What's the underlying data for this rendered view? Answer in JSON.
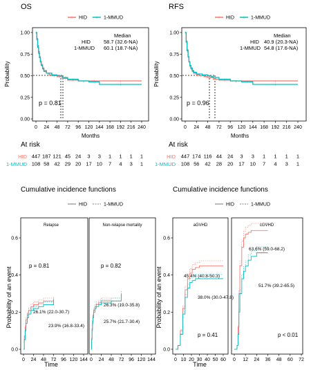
{
  "colors": {
    "hid": "#f8766d",
    "mmud": "#00bfc4"
  },
  "survival": [
    {
      "title": "OS",
      "legend": [
        "HID",
        "1-MMUD"
      ],
      "median_header": "Median",
      "median_rows": [
        {
          "group": "HID",
          "value": "58.7 (32.6-NA)"
        },
        {
          "group": "1-MMUD",
          "value": "60.1 (18.7-NA)"
        }
      ],
      "p_text": "p = 0.81",
      "ylabel": "Probability",
      "xlabel": "Months",
      "yticks": [
        "0.00",
        "0.25",
        "0.50",
        "0.75",
        "1.00"
      ],
      "xticks": [
        "0",
        "24",
        "48",
        "72",
        "96",
        "120",
        "144",
        "168",
        "192",
        "216",
        "240"
      ],
      "at_risk_title": "At risk",
      "at_risk": [
        {
          "group": "HID",
          "counts": [
            "447",
            "187",
            "121",
            "45",
            "24",
            "3",
            "3",
            "1",
            "1",
            "1",
            "1"
          ]
        },
        {
          "group": "1-MMUD",
          "counts": [
            "108",
            "58",
            "42",
            "29",
            "20",
            "17",
            "10",
            "7",
            "4",
            "3",
            "1"
          ]
        }
      ]
    },
    {
      "title": "RFS",
      "legend": [
        "HID",
        "1-MMUD"
      ],
      "median_header": "Median",
      "median_rows": [
        {
          "group": "HID",
          "value": "40.9 (20.3-NA)"
        },
        {
          "group": "1-MMUD",
          "value": "54.8 (17.6-NA)"
        }
      ],
      "p_text": "p = 0.96",
      "ylabel": "Probability",
      "xlabel": "Months",
      "yticks": [
        "0.00",
        "0.25",
        "0.50",
        "0.75",
        "1.00"
      ],
      "xticks": [
        "0",
        "24",
        "48",
        "72",
        "96",
        "120",
        "144",
        "168",
        "192",
        "216",
        "240"
      ],
      "at_risk_title": "At risk",
      "at_risk": [
        {
          "group": "HID",
          "counts": [
            "447",
            "174",
            "116",
            "44",
            "24",
            "3",
            "3",
            "1",
            "1",
            "1",
            "1"
          ]
        },
        {
          "group": "1-MMUD",
          "counts": [
            "108",
            "56",
            "42",
            "28",
            "20",
            "17",
            "10",
            "7",
            "4",
            "3",
            "1"
          ]
        }
      ]
    }
  ],
  "cif": {
    "left_title": "Cumulative incidence functions",
    "right_title": "Cumulative incidence functions",
    "legend": [
      "HID",
      "1-MMUD"
    ],
    "panels": [
      {
        "title": "Relapse",
        "p_text": "p = 0.81",
        "ann_hid": "26.1% (22.0-30.7)",
        "ann_mmud": "23.9% (16.8-33.4)",
        "xticks": [
          "0",
          "24",
          "48",
          "72",
          "96",
          "120",
          "144"
        ]
      },
      {
        "title": "Non-relapse mortality",
        "p_text": "p = 0.82",
        "ann_hid": "26.3% (19.0-35.8)",
        "ann_mmud": "25.7% (21.7-30.4)",
        "xticks": [
          "0",
          "24",
          "48",
          "72",
          "96",
          "120",
          "144"
        ]
      },
      {
        "title": "aGVHD",
        "p_text": "p = 0.41",
        "ann_hid": "45.4% (40.8-50.3)",
        "ann_mmud": "38.0% (30.0-47.8)",
        "xticks": [
          "0",
          "10",
          "20",
          "30",
          "40",
          "50",
          "60"
        ]
      },
      {
        "title": "cGVHD",
        "p_text": "p < 0.01",
        "ann_hid": "63.6% (59.0-68.2)",
        "ann_mmud": "51.7% (39.2-65.5)",
        "xticks": [
          "0",
          "12",
          "24",
          "36",
          "48",
          "60",
          "72"
        ]
      }
    ],
    "ylabel": "Probability of an event",
    "xlabel": "Time",
    "yticks": [
      "0.0",
      "0.2",
      "0.4",
      "0.6"
    ]
  },
  "chart_data": [
    {
      "type": "line",
      "title": "OS",
      "xlabel": "Months",
      "ylabel": "Probability",
      "xlim": [
        0,
        250
      ],
      "ylim": [
        0,
        1
      ],
      "series": [
        {
          "name": "HID",
          "x": [
            0,
            2,
            4,
            6,
            8,
            10,
            12,
            15,
            18,
            24,
            30,
            36,
            48,
            60,
            72,
            96,
            120,
            144,
            240
          ],
          "values": [
            1.0,
            0.93,
            0.85,
            0.78,
            0.72,
            0.67,
            0.63,
            0.59,
            0.56,
            0.53,
            0.51,
            0.5,
            0.49,
            0.47,
            0.45,
            0.44,
            0.44,
            0.44,
            0.44
          ]
        },
        {
          "name": "1-MMUD",
          "x": [
            0,
            2,
            4,
            6,
            8,
            10,
            12,
            15,
            18,
            24,
            36,
            48,
            60,
            72,
            96,
            120,
            144,
            240
          ],
          "values": [
            1.0,
            0.92,
            0.83,
            0.76,
            0.71,
            0.66,
            0.62,
            0.58,
            0.55,
            0.53,
            0.51,
            0.5,
            0.48,
            0.46,
            0.44,
            0.43,
            0.4,
            0.4
          ]
        }
      ]
    },
    {
      "type": "line",
      "title": "RFS",
      "xlabel": "Months",
      "ylabel": "Probability",
      "xlim": [
        0,
        250
      ],
      "ylim": [
        0,
        1
      ],
      "series": [
        {
          "name": "HID",
          "x": [
            0,
            2,
            4,
            6,
            8,
            10,
            12,
            15,
            18,
            24,
            30,
            36,
            41,
            48,
            60,
            72,
            96,
            120,
            144,
            240
          ],
          "values": [
            1.0,
            0.9,
            0.8,
            0.72,
            0.66,
            0.61,
            0.58,
            0.55,
            0.53,
            0.51,
            0.5,
            0.5,
            0.49,
            0.48,
            0.46,
            0.45,
            0.44,
            0.44,
            0.44,
            0.44
          ]
        },
        {
          "name": "1-MMUD",
          "x": [
            0,
            2,
            4,
            6,
            8,
            10,
            12,
            15,
            18,
            24,
            36,
            48,
            55,
            60,
            72,
            96,
            120,
            144,
            240
          ],
          "values": [
            1.0,
            0.89,
            0.79,
            0.72,
            0.66,
            0.62,
            0.59,
            0.56,
            0.54,
            0.52,
            0.51,
            0.5,
            0.49,
            0.48,
            0.46,
            0.44,
            0.43,
            0.4,
            0.4
          ]
        }
      ]
    },
    {
      "type": "line",
      "title": "Relapse",
      "xlabel": "Time",
      "ylabel": "Probability of an event",
      "xlim": [
        0,
        144
      ],
      "ylim": [
        0,
        0.7
      ],
      "series": [
        {
          "name": "HID",
          "x": [
            0,
            2,
            4,
            6,
            9,
            12,
            18,
            24,
            36,
            48,
            72
          ],
          "values": [
            0,
            0.07,
            0.12,
            0.16,
            0.19,
            0.21,
            0.23,
            0.24,
            0.25,
            0.26,
            0.26
          ]
        },
        {
          "name": "1-MMUD",
          "x": [
            0,
            2,
            4,
            6,
            9,
            12,
            18,
            24,
            36,
            48,
            60,
            72
          ],
          "values": [
            0,
            0.05,
            0.1,
            0.14,
            0.17,
            0.19,
            0.21,
            0.22,
            0.23,
            0.24,
            0.24,
            0.27
          ]
        }
      ]
    },
    {
      "type": "line",
      "title": "Non-relapse mortality",
      "xlabel": "Time",
      "ylabel": "Probability of an event",
      "xlim": [
        0,
        144
      ],
      "ylim": [
        0,
        0.7
      ],
      "series": [
        {
          "name": "HID",
          "x": [
            0,
            1,
            2,
            3,
            4,
            6,
            9,
            12,
            18,
            24,
            48,
            72
          ],
          "values": [
            0,
            0.06,
            0.11,
            0.15,
            0.18,
            0.21,
            0.23,
            0.24,
            0.25,
            0.26,
            0.26,
            0.26
          ]
        },
        {
          "name": "1-MMUD",
          "x": [
            0,
            1,
            2,
            3,
            4,
            6,
            9,
            12,
            18,
            24,
            48,
            72
          ],
          "values": [
            0,
            0.05,
            0.1,
            0.14,
            0.17,
            0.2,
            0.22,
            0.23,
            0.24,
            0.25,
            0.26,
            0.3
          ]
        }
      ]
    },
    {
      "type": "line",
      "title": "aGVHD",
      "xlabel": "Time",
      "ylabel": "Probability of an event",
      "xlim": [
        0,
        65
      ],
      "ylim": [
        0,
        0.7
      ],
      "series": [
        {
          "name": "HID",
          "x": [
            0,
            3,
            6,
            9,
            12,
            15,
            18,
            21,
            25,
            30,
            40,
            60
          ],
          "values": [
            0,
            0.02,
            0.1,
            0.22,
            0.32,
            0.38,
            0.41,
            0.43,
            0.44,
            0.45,
            0.45,
            0.45
          ]
        },
        {
          "name": "1-MMUD",
          "x": [
            0,
            3,
            6,
            9,
            12,
            15,
            18,
            21,
            25,
            30,
            40,
            60
          ],
          "values": [
            0,
            0.02,
            0.08,
            0.19,
            0.28,
            0.33,
            0.36,
            0.37,
            0.38,
            0.38,
            0.38,
            0.38
          ]
        }
      ]
    },
    {
      "type": "line",
      "title": "cGVHD",
      "xlabel": "Time",
      "ylabel": "Probability of an event",
      "xlim": [
        0,
        72
      ],
      "ylim": [
        0,
        0.7
      ],
      "series": [
        {
          "name": "HID",
          "x": [
            0,
            3,
            4,
            5,
            6,
            8,
            10,
            12,
            15,
            18,
            24,
            36
          ],
          "values": [
            0,
            0.02,
            0.12,
            0.3,
            0.45,
            0.55,
            0.6,
            0.62,
            0.63,
            0.64,
            0.64,
            0.64
          ]
        },
        {
          "name": "1-MMUD",
          "x": [
            0,
            3,
            4,
            5,
            6,
            8,
            10,
            12,
            15,
            18,
            24,
            36
          ],
          "values": [
            0,
            0.02,
            0.08,
            0.2,
            0.3,
            0.38,
            0.42,
            0.45,
            0.48,
            0.5,
            0.52,
            0.52
          ]
        }
      ]
    }
  ]
}
